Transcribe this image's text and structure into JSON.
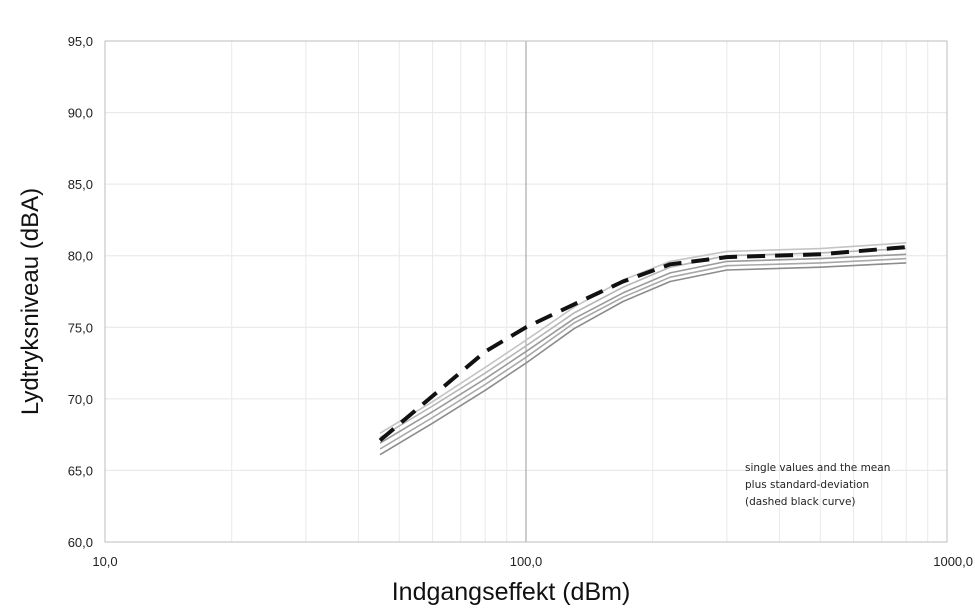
{
  "chart_data": {
    "type": "line",
    "xlabel": "Indgangseffekt (dBm)",
    "ylabel": "Lydtryksniveau  (dBA)",
    "x_scale": "log",
    "xlim": [
      10,
      1000
    ],
    "ylim": [
      60,
      95
    ],
    "x_ticks": [
      "10,0",
      "100,0",
      "1000,0"
    ],
    "y_ticks": [
      "60,0",
      "65,0",
      "70,0",
      "75,0",
      "80,0",
      "85,0",
      "90,0",
      "95,0"
    ],
    "grid": true,
    "annotation": [
      "single values and the mean",
      "plus standard-deviation",
      "(dashed black curve)"
    ],
    "series": [
      {
        "style": "solid",
        "color": "#b5b5b5",
        "x": [
          45,
          60,
          80,
          100,
          130,
          170,
          220,
          300,
          500,
          800
        ],
        "y": [
          67.3,
          69.5,
          71.8,
          73.7,
          76.0,
          77.8,
          79.2,
          80.0,
          80.2,
          80.5
        ]
      },
      {
        "style": "solid",
        "color": "#9a9a9a",
        "x": [
          45,
          60,
          80,
          100,
          130,
          170,
          220,
          300,
          500,
          800
        ],
        "y": [
          66.9,
          69.1,
          71.4,
          73.3,
          75.6,
          77.4,
          78.8,
          79.6,
          79.8,
          80.1
        ]
      },
      {
        "style": "solid",
        "color": "#a8a8a8",
        "x": [
          45,
          60,
          80,
          100,
          130,
          170,
          220,
          300,
          500,
          800
        ],
        "y": [
          66.5,
          68.7,
          71.0,
          72.9,
          75.3,
          77.1,
          78.5,
          79.3,
          79.5,
          79.8
        ]
      },
      {
        "style": "solid",
        "color": "#8c8c8c",
        "x": [
          45,
          60,
          80,
          100,
          130,
          170,
          220,
          300,
          500,
          800
        ],
        "y": [
          66.1,
          68.3,
          70.6,
          72.5,
          74.9,
          76.8,
          78.2,
          79.0,
          79.2,
          79.5
        ]
      },
      {
        "style": "solid",
        "color": "#c4c4c4",
        "x": [
          45,
          60,
          80,
          100,
          130,
          170,
          220,
          300,
          500,
          800
        ],
        "y": [
          67.6,
          69.8,
          72.2,
          74.1,
          76.4,
          78.3,
          79.6,
          80.3,
          80.5,
          80.9
        ]
      },
      {
        "style": "dashed",
        "color": "#111111",
        "x": [
          45,
          60,
          80,
          100,
          130,
          170,
          220,
          300,
          500,
          800
        ],
        "y": [
          67.1,
          70.2,
          73.3,
          75.0,
          76.6,
          78.2,
          79.4,
          79.9,
          80.1,
          80.6
        ]
      }
    ]
  }
}
